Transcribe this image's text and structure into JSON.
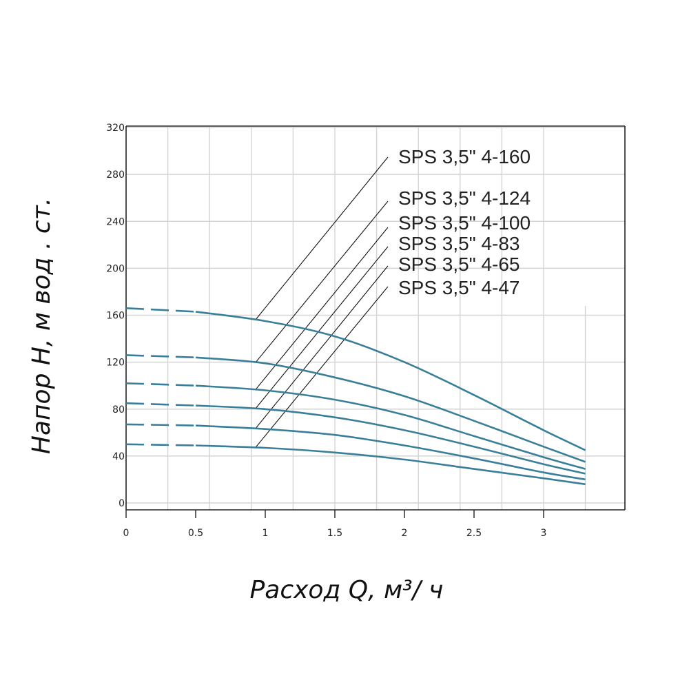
{
  "chart_data": {
    "type": "line",
    "xlabel": "Расход   Q,  м³/ ч",
    "ylabel": "Напор  H,  м вод . ст.",
    "xlim": [
      0,
      3.6
    ],
    "ylim": [
      0,
      320
    ],
    "xticks": [
      {
        "value": 0,
        "label": "0"
      },
      {
        "value": 0.5,
        "label": "0.5"
      },
      {
        "value": 1,
        "label": "1"
      },
      {
        "value": 1.5,
        "label": "1.5"
      },
      {
        "value": 2,
        "label": "2"
      },
      {
        "value": 2.5,
        "label": "2.5"
      },
      {
        "value": 3,
        "label": "3"
      }
    ],
    "yticks": [
      {
        "value": 0,
        "label": "0"
      },
      {
        "value": 40,
        "label": "40"
      },
      {
        "value": 80,
        "label": "80"
      },
      {
        "value": 120,
        "label": "120"
      },
      {
        "value": 160,
        "label": "160"
      },
      {
        "value": 200,
        "label": "200"
      },
      {
        "value": 240,
        "label": "240"
      },
      {
        "value": 280,
        "label": "280"
      },
      {
        "value": 320,
        "label": "320"
      }
    ],
    "x_gridlines": [
      0.3,
      0.6,
      0.9,
      1.2,
      1.5,
      1.8,
      2.1,
      2.4,
      2.7,
      3.0,
      3.3
    ],
    "y_gridlines": [
      0,
      40,
      80,
      120,
      160,
      200,
      240,
      280,
      320
    ],
    "grid": true,
    "line_color": "#3a7f9a",
    "leader_color": "#111111",
    "dashed_until_x": 0.55,
    "series": [
      {
        "name": "SPS 3,5\" 4-160",
        "x": [
          0,
          0.5,
          1.0,
          1.5,
          2.0,
          2.5,
          3.0,
          3.3
        ],
        "y": [
          166,
          163,
          155,
          142,
          120,
          92,
          62,
          45
        ]
      },
      {
        "name": "SPS 3,5\" 4-124",
        "x": [
          0,
          0.5,
          1.0,
          1.5,
          2.0,
          2.5,
          3.0,
          3.3
        ],
        "y": [
          126,
          124,
          119,
          107,
          91,
          70,
          48,
          35
        ]
      },
      {
        "name": "SPS 3,5\" 4-100",
        "x": [
          0,
          0.5,
          1.0,
          1.5,
          2.0,
          2.5,
          3.0,
          3.3
        ],
        "y": [
          102,
          100,
          96,
          88,
          75,
          57,
          39,
          29
        ]
      },
      {
        "name": "SPS 3,5\" 4-83",
        "x": [
          0,
          0.5,
          1.0,
          1.5,
          2.0,
          2.5,
          3.0,
          3.3
        ],
        "y": [
          85,
          83,
          80,
          73,
          62,
          48,
          33,
          25
        ]
      },
      {
        "name": "SPS 3,5\" 4-65",
        "x": [
          0,
          0.5,
          1.0,
          1.5,
          2.0,
          2.5,
          3.0,
          3.3
        ],
        "y": [
          67,
          66,
          63,
          58,
          49,
          38,
          26,
          20
        ]
      },
      {
        "name": "SPS 3,5\" 4-47",
        "x": [
          0,
          0.5,
          1.0,
          1.5,
          2.0,
          2.5,
          3.0,
          3.3
        ],
        "y": [
          50,
          49,
          47,
          43,
          37,
          29,
          21,
          16
        ]
      }
    ]
  }
}
